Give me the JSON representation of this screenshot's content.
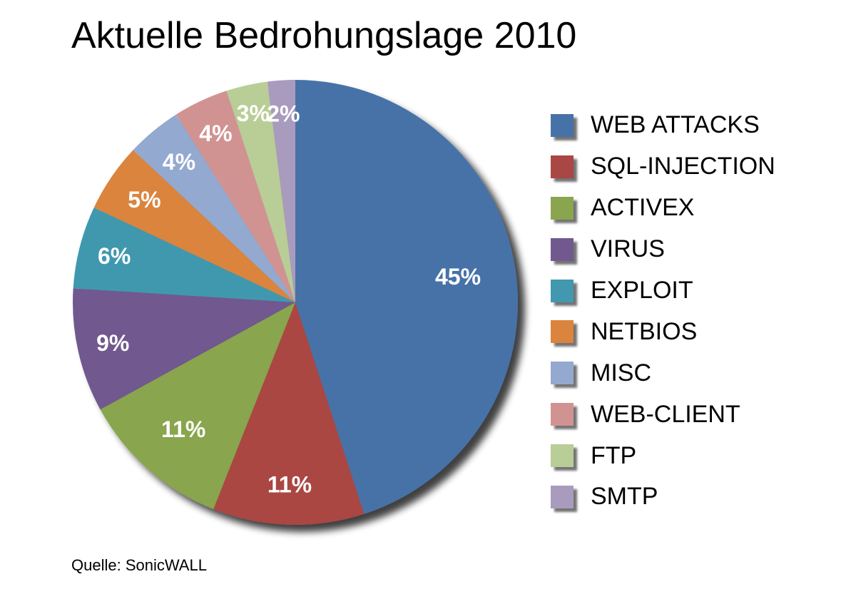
{
  "chart_data": {
    "type": "pie",
    "title": "Aktuelle Bedrohungslage 2010",
    "source": "Quelle: SonicWALL",
    "legend_position": "right",
    "slices": [
      {
        "name": "WEB ATTACKS",
        "value": 45,
        "label": "45%",
        "color": "#4672A8"
      },
      {
        "name": "SQL-INJECTION",
        "value": 11,
        "label": "11%",
        "color": "#AA4643"
      },
      {
        "name": "ACTIVEX",
        "value": 11,
        "label": "11%",
        "color": "#89A54E"
      },
      {
        "name": "VIRUS",
        "value": 9,
        "label": "9%",
        "color": "#71588F"
      },
      {
        "name": "EXPLOIT",
        "value": 6,
        "label": "6%",
        "color": "#4198AF"
      },
      {
        "name": "NETBIOS",
        "value": 5,
        "label": "5%",
        "color": "#DB843D"
      },
      {
        "name": "MISC",
        "value": 4,
        "label": "4%",
        "color": "#93A9CF"
      },
      {
        "name": "WEB-CLIENT",
        "value": 4,
        "label": "4%",
        "color": "#D19392"
      },
      {
        "name": "FTP",
        "value": 3,
        "label": "3%",
        "color": "#B9CD96"
      },
      {
        "name": "SMTP",
        "value": 2,
        "label": "2%",
        "color": "#A99BBD"
      }
    ]
  }
}
